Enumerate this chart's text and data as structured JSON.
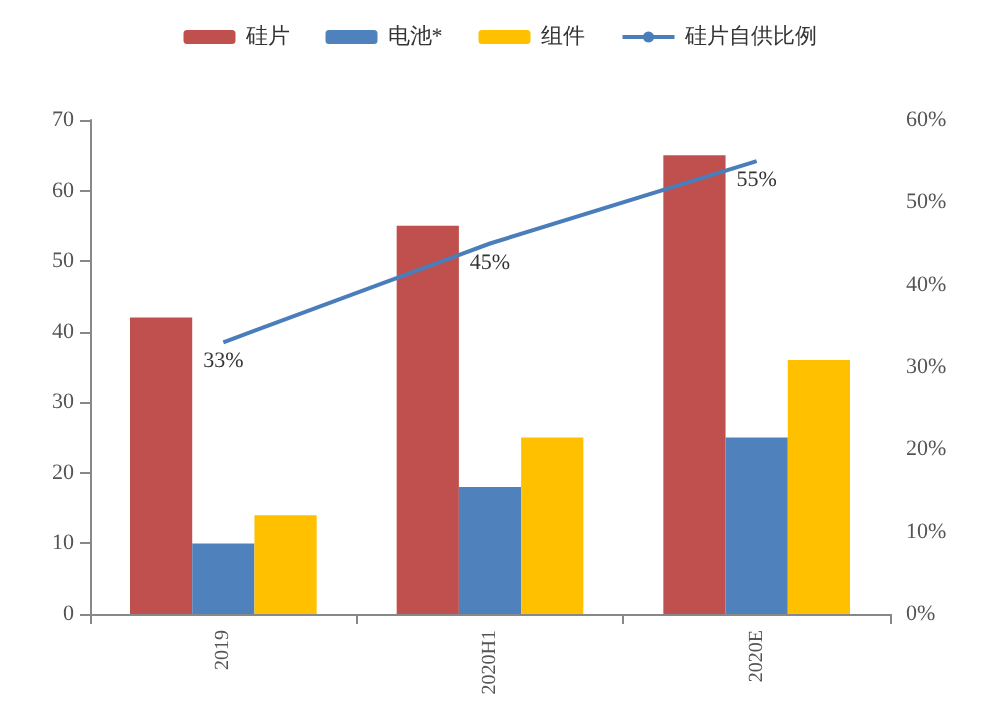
{
  "chart_data": {
    "type": "bar",
    "categories": [
      "2019",
      "2020H1",
      "2020E"
    ],
    "series": [
      {
        "name": "硅片",
        "color": "#c0504d",
        "values": [
          42,
          55,
          65
        ]
      },
      {
        "name": "电池*",
        "color": "#4f81bd",
        "values": [
          10,
          18,
          25
        ]
      },
      {
        "name": "组件",
        "color": "#ffc000",
        "values": [
          14,
          25,
          36
        ]
      },
      {
        "name": "硅片自供比例",
        "type": "line",
        "axis": "y2",
        "color": "#4a7ebb",
        "values": [
          33,
          45,
          55
        ],
        "value_labels": [
          "33%",
          "45%",
          "55%"
        ]
      }
    ],
    "ylim": [
      0,
      70
    ],
    "yticks": [
      0,
      10,
      20,
      30,
      40,
      50,
      60,
      70
    ],
    "y2lim": [
      0,
      60
    ],
    "y2ticks": [
      {
        "value": 0,
        "label": "0%"
      },
      {
        "value": 10,
        "label": "10%"
      },
      {
        "value": 20,
        "label": "20%"
      },
      {
        "value": 30,
        "label": "30%"
      },
      {
        "value": 40,
        "label": "40%"
      },
      {
        "value": 50,
        "label": "50%"
      },
      {
        "value": 60,
        "label": "60%"
      }
    ],
    "grid": false,
    "legend": "top",
    "marker": "none"
  }
}
